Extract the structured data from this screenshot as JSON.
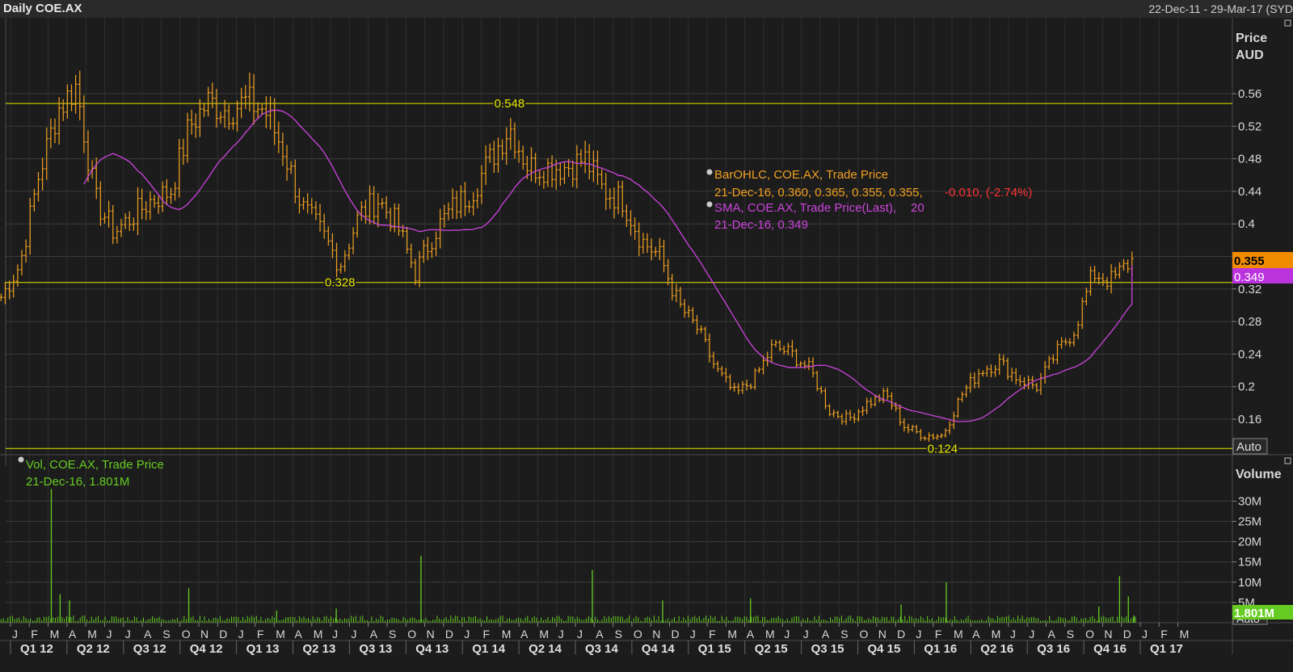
{
  "header": {
    "title": "Daily COE.AX",
    "range": "22-Dec-11 - 29-Mar-17 (SYD"
  },
  "colors": {
    "background": "#1c1c1c",
    "grid": "#3c3c3c",
    "bar": "#f0a020",
    "sma": "#cc44dd",
    "volume": "#66cc22",
    "hline": "#e8e800",
    "negative": "#ff3333"
  },
  "price_panel": {
    "axis_title": "Price",
    "axis_unit": "AUD",
    "auto_label": "Auto",
    "legend": {
      "bar_title": "BarOHLC, COE.AX, Trade Price",
      "bar_values": "21-Dec-16, 0.360, 0.365, 0.355, 0.355,",
      "bar_change": "-0.010, (-2.74%)",
      "sma_title": "SMA, COE.AX, Trade Price(Last),",
      "sma_period": "20",
      "sma_values": "21-Dec-16, 0.349"
    },
    "last_price_tag": "0.355",
    "sma_tag": "0.349"
  },
  "volume_panel": {
    "axis_title": "Volume",
    "auto_label": "Auto",
    "legend_title": "Vol, COE.AX, Trade Price",
    "legend_values": "21-Dec-16, 1.801M",
    "last_volume_tag": "1.801M"
  },
  "chart_data": [
    {
      "type": "ohlc",
      "title": "Daily COE.AX",
      "ylabel": "Price AUD",
      "ylim": [
        0.12,
        0.585
      ],
      "yticks": [
        "0.56",
        "0.52",
        "0.48",
        "0.44",
        "0.4",
        "0.36",
        "0.32",
        "0.28",
        "0.24",
        "0.2",
        "0.16"
      ],
      "horizontal_lines": [
        {
          "value": 0.548,
          "label": "0.548",
          "label_month": "2014-03"
        },
        {
          "value": 0.328,
          "label": "0.328",
          "label_month": "2013-06"
        },
        {
          "value": 0.124,
          "label": "0.124",
          "label_month": "2016-02"
        }
      ],
      "series": [
        {
          "name": "BarOHLC",
          "monthly_close": [
            {
              "month": "2011-12",
              "close": 0.31
            },
            {
              "month": "2012-01",
              "close": 0.35
            },
            {
              "month": "2012-02",
              "close": 0.46
            },
            {
              "month": "2012-03",
              "close": 0.54
            },
            {
              "month": "2012-04",
              "close": 0.57
            },
            {
              "month": "2012-05",
              "close": 0.43
            },
            {
              "month": "2012-06",
              "close": 0.39
            },
            {
              "month": "2012-07",
              "close": 0.41
            },
            {
              "month": "2012-08",
              "close": 0.43
            },
            {
              "month": "2012-09",
              "close": 0.44
            },
            {
              "month": "2012-10",
              "close": 0.52
            },
            {
              "month": "2012-11",
              "close": 0.55
            },
            {
              "month": "2012-12",
              "close": 0.54
            },
            {
              "month": "2013-01",
              "close": 0.55
            },
            {
              "month": "2013-02",
              "close": 0.54
            },
            {
              "month": "2013-03",
              "close": 0.49
            },
            {
              "month": "2013-04",
              "close": 0.42
            },
            {
              "month": "2013-05",
              "close": 0.39
            },
            {
              "month": "2013-06",
              "close": 0.35
            },
            {
              "month": "2013-07",
              "close": 0.41
            },
            {
              "month": "2013-08",
              "close": 0.43
            },
            {
              "month": "2013-09",
              "close": 0.4
            },
            {
              "month": "2013-10",
              "close": 0.34
            },
            {
              "month": "2013-11",
              "close": 0.39
            },
            {
              "month": "2013-12",
              "close": 0.42
            },
            {
              "month": "2014-01",
              "close": 0.44
            },
            {
              "month": "2014-02",
              "close": 0.48
            },
            {
              "month": "2014-03",
              "close": 0.52
            },
            {
              "month": "2014-04",
              "close": 0.47
            },
            {
              "month": "2014-05",
              "close": 0.47
            },
            {
              "month": "2014-06",
              "close": 0.47
            },
            {
              "month": "2014-07",
              "close": 0.48
            },
            {
              "month": "2014-08",
              "close": 0.44
            },
            {
              "month": "2014-09",
              "close": 0.43
            },
            {
              "month": "2014-10",
              "close": 0.38
            },
            {
              "month": "2014-11",
              "close": 0.36
            },
            {
              "month": "2014-12",
              "close": 0.3
            },
            {
              "month": "2015-01",
              "close": 0.27
            },
            {
              "month": "2015-02",
              "close": 0.22
            },
            {
              "month": "2015-03",
              "close": 0.19
            },
            {
              "month": "2015-04",
              "close": 0.21
            },
            {
              "month": "2015-05",
              "close": 0.25
            },
            {
              "month": "2015-06",
              "close": 0.24
            },
            {
              "month": "2015-07",
              "close": 0.22
            },
            {
              "month": "2015-08",
              "close": 0.17
            },
            {
              "month": "2015-09",
              "close": 0.16
            },
            {
              "month": "2015-10",
              "close": 0.18
            },
            {
              "month": "2015-11",
              "close": 0.19
            },
            {
              "month": "2015-12",
              "close": 0.15
            },
            {
              "month": "2016-01",
              "close": 0.14
            },
            {
              "month": "2016-02",
              "close": 0.14
            },
            {
              "month": "2016-03",
              "close": 0.19
            },
            {
              "month": "2016-04",
              "close": 0.22
            },
            {
              "month": "2016-05",
              "close": 0.23
            },
            {
              "month": "2016-06",
              "close": 0.21
            },
            {
              "month": "2016-07",
              "close": 0.2
            },
            {
              "month": "2016-08",
              "close": 0.24
            },
            {
              "month": "2016-09",
              "close": 0.27
            },
            {
              "month": "2016-10",
              "close": 0.34
            },
            {
              "month": "2016-11",
              "close": 0.33
            },
            {
              "month": "2016-12",
              "close": 0.355
            }
          ]
        },
        {
          "name": "SMA",
          "period": 20,
          "last": 0.349
        }
      ]
    },
    {
      "type": "bar",
      "title": "Vol, COE.AX, Trade Price",
      "ylabel": "Volume",
      "ylim": [
        0,
        35
      ],
      "yticks": [
        "30M",
        "25M",
        "20M",
        "15M",
        "10M",
        "5M"
      ],
      "unit": "M",
      "series": [
        {
          "name": "Vol",
          "spikes": [
            {
              "date": "2012-03-06",
              "value": 33
            },
            {
              "date": "2012-03-20",
              "value": 7
            },
            {
              "date": "2012-04-05",
              "value": 5.5
            },
            {
              "date": "2012-10-15",
              "value": 8.5
            },
            {
              "date": "2013-03-05",
              "value": 3
            },
            {
              "date": "2013-06-10",
              "value": 3.5
            },
            {
              "date": "2013-10-25",
              "value": 16.5
            },
            {
              "date": "2014-07-28",
              "value": 13
            },
            {
              "date": "2014-11-20",
              "value": 5.5
            },
            {
              "date": "2015-04-10",
              "value": 6
            },
            {
              "date": "2015-12-10",
              "value": 4.5
            },
            {
              "date": "2016-02-22",
              "value": 10
            },
            {
              "date": "2016-10-25",
              "value": 4
            },
            {
              "date": "2016-11-28",
              "value": 11.5
            },
            {
              "date": "2016-12-12",
              "value": 6.5
            },
            {
              "date": "2016-12-21",
              "value": 1.801
            }
          ]
        }
      ]
    }
  ],
  "x_axis": {
    "month_letters": [
      "J",
      "F",
      "M",
      "A",
      "M",
      "J",
      "J",
      "A",
      "S",
      "O",
      "N",
      "D",
      "J",
      "F",
      "M",
      "A",
      "M",
      "J",
      "J",
      "A",
      "S",
      "O",
      "N",
      "D",
      "J",
      "F",
      "M",
      "A",
      "M",
      "J",
      "J",
      "A",
      "S",
      "O",
      "N",
      "D",
      "J",
      "F",
      "M",
      "A",
      "M",
      "J",
      "J",
      "A",
      "S",
      "O",
      "N",
      "D",
      "J",
      "F",
      "M",
      "A",
      "M",
      "J",
      "J",
      "A",
      "S",
      "O",
      "N",
      "D",
      "J",
      "F",
      "M"
    ],
    "quarters": [
      "Q1 12",
      "Q2 12",
      "Q3 12",
      "Q4 12",
      "Q1 13",
      "Q2 13",
      "Q3 13",
      "Q4 13",
      "Q1 14",
      "Q2 14",
      "Q3 14",
      "Q4 14",
      "Q1 15",
      "Q2 15",
      "Q3 15",
      "Q4 15",
      "Q1 16",
      "Q2 16",
      "Q3 16",
      "Q4 16",
      "Q1 17"
    ]
  }
}
